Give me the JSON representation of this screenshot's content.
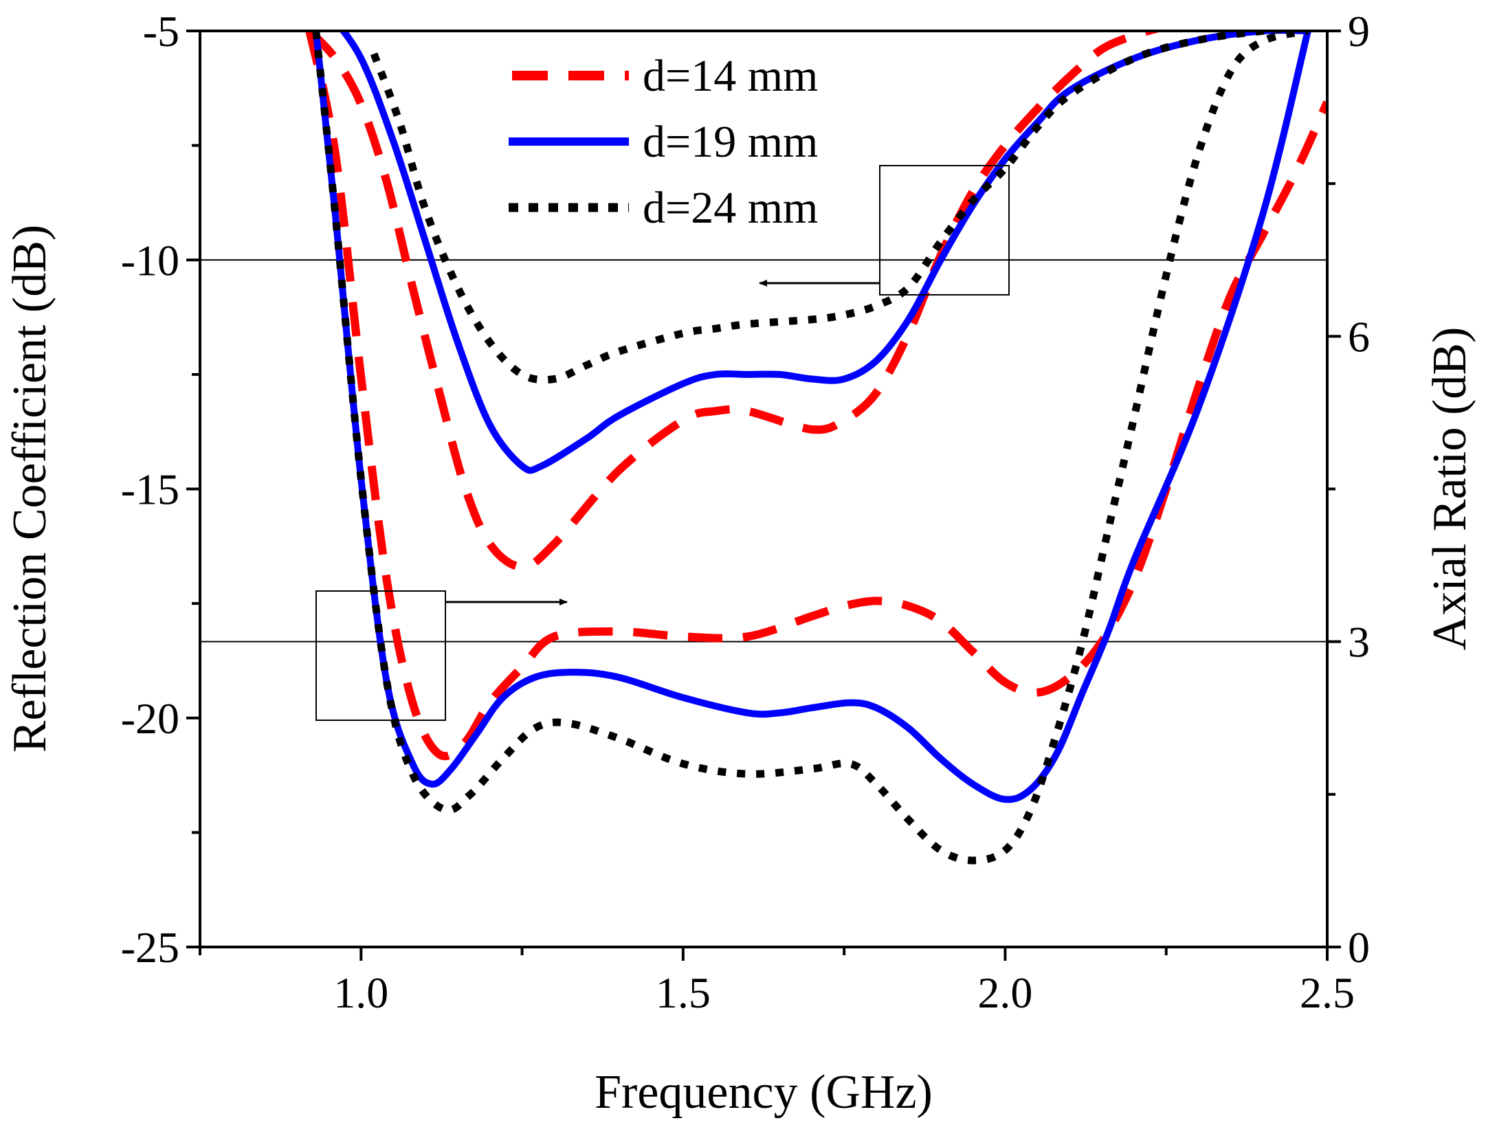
{
  "chart_data": {
    "type": "line",
    "xlabel": "Frequency (GHz)",
    "ylabel_left": "Reflection Coefficient (dB)",
    "ylabel_right": "Axial Ratio (dB)",
    "xlim": [
      0.75,
      2.5
    ],
    "ylim_left": [
      -25,
      -5
    ],
    "ylim_right": [
      0,
      9
    ],
    "x_ticks": [
      "1.0",
      "1.5",
      "2.0",
      "2.5"
    ],
    "y_left_ticks": [
      "-5",
      "-10",
      "-15",
      "-20",
      "-25"
    ],
    "y_right_ticks": [
      "9",
      "6",
      "3",
      "0"
    ],
    "reference_lines": {
      "left_axis": -10,
      "right_axis": 3
    },
    "annotations": [
      {
        "type": "box_arrow",
        "points_to": "left_axis",
        "near_frequency": 1.9
      },
      {
        "type": "box_arrow",
        "points_to": "right_axis",
        "near_frequency": 1.04
      }
    ],
    "legend": [
      "d=14 mm",
      "d=19 mm",
      "d=24 mm"
    ],
    "series": [
      {
        "name": "d=14 mm",
        "axis": "left",
        "color": "#ff0000",
        "style": "dashed",
        "x": [
          0.92,
          0.96,
          1.0,
          1.04,
          1.08,
          1.12,
          1.16,
          1.2,
          1.25,
          1.3,
          1.4,
          1.5,
          1.55,
          1.6,
          1.7,
          1.75,
          1.8,
          1.85,
          1.9,
          1.95,
          2.0,
          2.05,
          2.1,
          2.15,
          2.2,
          2.25,
          2.3
        ],
        "y": [
          -5.0,
          -5.6,
          -6.6,
          -8.3,
          -10.6,
          -12.8,
          -14.9,
          -16.2,
          -16.7,
          -16.2,
          -14.6,
          -13.5,
          -13.3,
          -13.3,
          -13.7,
          -13.5,
          -12.9,
          -11.6,
          -9.9,
          -8.5,
          -7.5,
          -6.7,
          -6.0,
          -5.4,
          -5.1,
          -4.9,
          -4.8
        ]
      },
      {
        "name": "d=19 mm",
        "axis": "left",
        "color": "#0000ff",
        "style": "solid",
        "x": [
          0.95,
          1.0,
          1.05,
          1.1,
          1.15,
          1.2,
          1.25,
          1.28,
          1.35,
          1.4,
          1.5,
          1.55,
          1.6,
          1.65,
          1.7,
          1.75,
          1.8,
          1.85,
          1.9,
          1.95,
          2.0,
          2.05,
          2.1,
          2.2,
          2.3,
          2.4,
          2.47
        ],
        "y": [
          -4.6,
          -5.6,
          -7.4,
          -9.6,
          -11.8,
          -13.6,
          -14.5,
          -14.5,
          -13.9,
          -13.4,
          -12.7,
          -12.5,
          -12.5,
          -12.5,
          -12.6,
          -12.6,
          -12.2,
          -11.3,
          -10.0,
          -8.8,
          -7.8,
          -7.0,
          -6.3,
          -5.6,
          -5.2,
          -5.0,
          -5.0
        ]
      },
      {
        "name": "d=24 mm",
        "axis": "left",
        "color": "#000000",
        "style": "dotted",
        "x": [
          1.02,
          1.06,
          1.1,
          1.15,
          1.2,
          1.25,
          1.3,
          1.35,
          1.4,
          1.5,
          1.55,
          1.6,
          1.7,
          1.75,
          1.8,
          1.85,
          1.9,
          1.95,
          2.0,
          2.05,
          2.1,
          2.2,
          2.3,
          2.4,
          2.47
        ],
        "y": [
          -5.5,
          -7.0,
          -8.9,
          -10.6,
          -11.8,
          -12.5,
          -12.6,
          -12.3,
          -12.0,
          -11.6,
          -11.5,
          -11.4,
          -11.3,
          -11.2,
          -11.0,
          -10.6,
          -9.6,
          -8.7,
          -8.0,
          -7.1,
          -6.4,
          -5.6,
          -5.2,
          -5.0,
          -4.9
        ]
      },
      {
        "name": "d=14 mm",
        "axis": "right",
        "color": "#ff0000",
        "style": "dashed",
        "x": [
          0.92,
          0.96,
          1.0,
          1.04,
          1.08,
          1.12,
          1.16,
          1.2,
          1.25,
          1.3,
          1.4,
          1.5,
          1.6,
          1.7,
          1.75,
          1.8,
          1.85,
          1.9,
          1.95,
          2.0,
          2.05,
          2.1,
          2.15,
          2.2,
          2.25,
          2.3,
          2.35,
          2.4,
          2.45,
          2.5
        ],
        "y": [
          9.0,
          7.8,
          5.6,
          3.6,
          2.4,
          1.9,
          2.0,
          2.4,
          2.75,
          3.05,
          3.1,
          3.05,
          3.05,
          3.25,
          3.35,
          3.4,
          3.35,
          3.2,
          2.9,
          2.6,
          2.5,
          2.65,
          3.0,
          3.6,
          4.5,
          5.5,
          6.4,
          7.0,
          7.6,
          8.3
        ]
      },
      {
        "name": "d=19 mm",
        "axis": "right",
        "color": "#0000ff",
        "style": "solid",
        "x": [
          0.93,
          0.96,
          1.0,
          1.04,
          1.08,
          1.11,
          1.14,
          1.18,
          1.22,
          1.27,
          1.33,
          1.4,
          1.5,
          1.6,
          1.65,
          1.7,
          1.76,
          1.8,
          1.85,
          1.9,
          1.95,
          2.0,
          2.04,
          2.08,
          2.12,
          2.16,
          2.2,
          2.3,
          2.4,
          2.47
        ],
        "y": [
          9.0,
          7.2,
          4.6,
          2.6,
          1.8,
          1.6,
          1.75,
          2.1,
          2.45,
          2.65,
          2.7,
          2.65,
          2.45,
          2.3,
          2.3,
          2.35,
          2.4,
          2.35,
          2.15,
          1.85,
          1.6,
          1.45,
          1.55,
          1.9,
          2.5,
          3.1,
          3.8,
          5.3,
          7.2,
          9.0
        ]
      },
      {
        "name": "d=24 mm",
        "axis": "right",
        "color": "#000000",
        "style": "dotted",
        "x": [
          0.93,
          0.96,
          1.0,
          1.04,
          1.08,
          1.13,
          1.17,
          1.22,
          1.27,
          1.32,
          1.4,
          1.5,
          1.6,
          1.7,
          1.76,
          1.8,
          1.85,
          1.9,
          1.95,
          2.0,
          2.04,
          2.08,
          2.12,
          2.16,
          2.2,
          2.25,
          2.3,
          2.35,
          2.4,
          2.47
        ],
        "y": [
          9.0,
          7.2,
          4.6,
          2.6,
          1.7,
          1.35,
          1.5,
          1.85,
          2.15,
          2.2,
          2.05,
          1.8,
          1.7,
          1.75,
          1.8,
          1.6,
          1.25,
          0.95,
          0.85,
          0.95,
          1.35,
          2.1,
          3.0,
          4.1,
          5.2,
          6.6,
          7.8,
          8.6,
          8.9,
          9.0
        ]
      }
    ]
  }
}
